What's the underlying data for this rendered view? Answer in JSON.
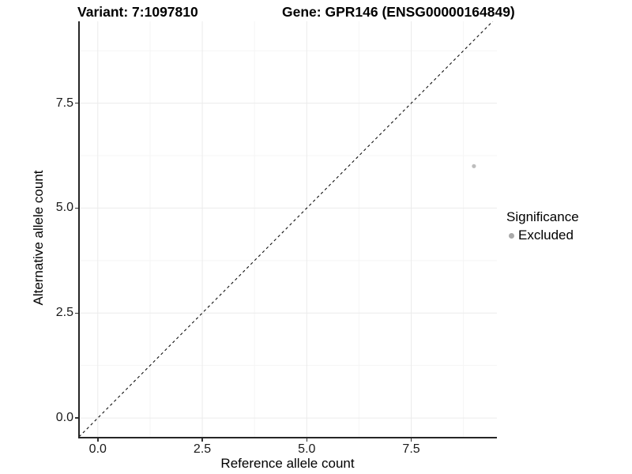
{
  "chart_data": {
    "type": "scatter",
    "title_left": "Variant: 7:1097810",
    "title_right": "Gene: GPR146 (ENSG00000164849)",
    "xlabel": "Reference allele count",
    "ylabel": "Alternative allele count",
    "xlim": [
      -0.45,
      9.55
    ],
    "ylim": [
      -0.45,
      9.45
    ],
    "x_tick_values": [
      0,
      2.5,
      5,
      7.5
    ],
    "x_tick_labels": [
      "0.0",
      "2.5",
      "5.0",
      "7.5"
    ],
    "y_tick_values": [
      0,
      2.5,
      5,
      7.5
    ],
    "y_tick_labels": [
      "0.0",
      "2.5",
      "5.0",
      "7.5"
    ],
    "minor_tick_values": [
      1.25,
      3.75,
      6.25,
      8.75
    ],
    "grid": "major+minor",
    "identity_line": {
      "equation": "y = x",
      "style": "dashed",
      "color": "#111111"
    },
    "series": [
      {
        "name": "Excluded",
        "color": "#bdbdbd",
        "points": [
          {
            "x": 9,
            "y": 6
          }
        ]
      }
    ],
    "legend": {
      "title": "Significance",
      "position": "right",
      "items": [
        {
          "label": "Excluded",
          "color": "#a9a9a9"
        }
      ]
    },
    "colors": {
      "grid_major": "#ebebeb",
      "grid_minor": "#f5f5f5",
      "axis_line": "#262626",
      "background": "#ffffff"
    }
  }
}
